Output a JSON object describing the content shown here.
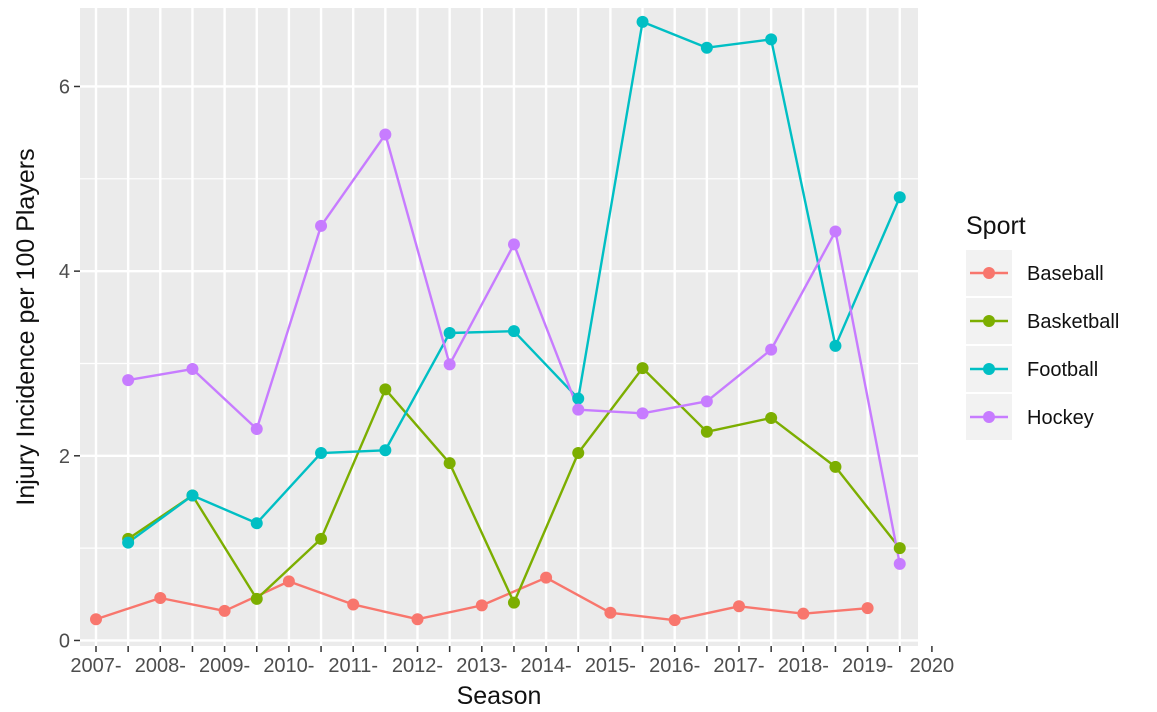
{
  "chart_data": {
    "type": "line",
    "xlabel": "Season",
    "ylabel": "Injury Incidence per 100 Players",
    "x_tick_labels": [
      "2007-",
      "2008-",
      "2009-",
      "2010-",
      "2011-",
      "2012-",
      "2013-",
      "2014-",
      "2015-",
      "2016-",
      "2017-",
      "2018-",
      "2019-",
      "2020"
    ],
    "x_range": [
      2007,
      2020
    ],
    "y_ticks": [
      0,
      2,
      4,
      6
    ],
    "ylim": [
      -0.06,
      6.85
    ],
    "grid": true,
    "legend": {
      "title": "Sport",
      "position": "right"
    },
    "series": [
      {
        "name": "Baseball",
        "color": "#F8766D",
        "points": [
          {
            "x": 2007,
            "y": 0.23
          },
          {
            "x": 2008,
            "y": 0.46
          },
          {
            "x": 2009,
            "y": 0.32
          },
          {
            "x": 2010,
            "y": 0.64
          },
          {
            "x": 2011,
            "y": 0.39
          },
          {
            "x": 2012,
            "y": 0.23
          },
          {
            "x": 2013,
            "y": 0.38
          },
          {
            "x": 2014,
            "y": 0.68
          },
          {
            "x": 2015,
            "y": 0.3
          },
          {
            "x": 2016,
            "y": 0.22
          },
          {
            "x": 2017,
            "y": 0.37
          },
          {
            "x": 2018,
            "y": 0.29
          },
          {
            "x": 2019,
            "y": 0.35
          }
        ]
      },
      {
        "name": "Basketball",
        "color": "#7CAE00",
        "points": [
          {
            "x": 2007.5,
            "y": 1.1
          },
          {
            "x": 2008.5,
            "y": 1.57
          },
          {
            "x": 2009.5,
            "y": 0.45
          },
          {
            "x": 2010.5,
            "y": 1.1
          },
          {
            "x": 2011.5,
            "y": 2.72
          },
          {
            "x": 2012.5,
            "y": 1.92
          },
          {
            "x": 2013.5,
            "y": 0.41
          },
          {
            "x": 2014.5,
            "y": 2.03
          },
          {
            "x": 2015.5,
            "y": 2.95
          },
          {
            "x": 2016.5,
            "y": 2.26
          },
          {
            "x": 2017.5,
            "y": 2.41
          },
          {
            "x": 2018.5,
            "y": 1.88
          },
          {
            "x": 2019.5,
            "y": 1.0
          }
        ]
      },
      {
        "name": "Football",
        "color": "#00BFC4",
        "points": [
          {
            "x": 2007.5,
            "y": 1.06
          },
          {
            "x": 2008.5,
            "y": 1.57
          },
          {
            "x": 2009.5,
            "y": 1.27
          },
          {
            "x": 2010.5,
            "y": 2.03
          },
          {
            "x": 2011.5,
            "y": 2.06
          },
          {
            "x": 2012.5,
            "y": 3.33
          },
          {
            "x": 2013.5,
            "y": 3.35
          },
          {
            "x": 2014.5,
            "y": 2.62
          },
          {
            "x": 2015.5,
            "y": 6.7
          },
          {
            "x": 2016.5,
            "y": 6.42
          },
          {
            "x": 2017.5,
            "y": 6.51
          },
          {
            "x": 2018.5,
            "y": 3.19
          },
          {
            "x": 2019.5,
            "y": 4.8
          }
        ]
      },
      {
        "name": "Hockey",
        "color": "#C77CFF",
        "points": [
          {
            "x": 2007.5,
            "y": 2.82
          },
          {
            "x": 2008.5,
            "y": 2.94
          },
          {
            "x": 2009.5,
            "y": 2.29
          },
          {
            "x": 2010.5,
            "y": 4.49
          },
          {
            "x": 2011.5,
            "y": 5.48
          },
          {
            "x": 2012.5,
            "y": 2.99
          },
          {
            "x": 2013.5,
            "y": 4.29
          },
          {
            "x": 2014.5,
            "y": 2.5
          },
          {
            "x": 2015.5,
            "y": 2.46
          },
          {
            "x": 2016.5,
            "y": 2.59
          },
          {
            "x": 2017.5,
            "y": 3.15
          },
          {
            "x": 2018.5,
            "y": 4.43
          },
          {
            "x": 2019.5,
            "y": 0.83
          }
        ]
      }
    ]
  }
}
